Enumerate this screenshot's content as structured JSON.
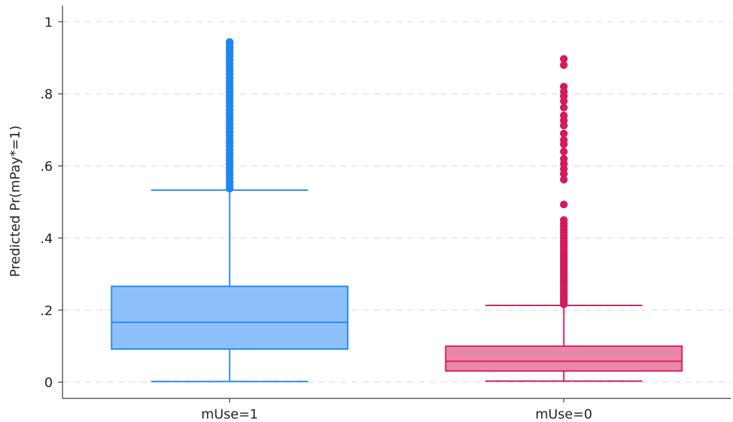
{
  "chart_data": {
    "type": "box",
    "ylabel": "Predicted Pr(mPay*=1)",
    "xlabel": "",
    "ylim": [
      -0.045,
      1.045
    ],
    "grid": true,
    "yticks": [
      {
        "value": 0,
        "label": "0"
      },
      {
        "value": 0.2,
        "label": ".2"
      },
      {
        "value": 0.4,
        "label": ".4"
      },
      {
        "value": 0.6,
        "label": ".6"
      },
      {
        "value": 0.8,
        "label": ".8"
      },
      {
        "value": 1,
        "label": "1"
      }
    ],
    "categories": [
      "mUse=1",
      "mUse=0"
    ],
    "series": [
      {
        "category": "mUse=1",
        "color": "#1f86f4",
        "fill": "#8ec1fb",
        "whisker_low": 0.002,
        "q1": 0.092,
        "median": 0.166,
        "q3": 0.266,
        "whisker_high": 0.533,
        "outliers": [
          0.537,
          0.545,
          0.555,
          0.565,
          0.575,
          0.585,
          0.595,
          0.605,
          0.615,
          0.625,
          0.635,
          0.645,
          0.655,
          0.665,
          0.675,
          0.685,
          0.695,
          0.705,
          0.715,
          0.725,
          0.735,
          0.745,
          0.755,
          0.765,
          0.775,
          0.785,
          0.795,
          0.805,
          0.815,
          0.825,
          0.835,
          0.845,
          0.855,
          0.865,
          0.875,
          0.885,
          0.895,
          0.905,
          0.915,
          0.922,
          0.93,
          0.938,
          0.944
        ]
      },
      {
        "category": "mUse=0",
        "color": "#d6185f",
        "fill": "#ea88a8",
        "whisker_low": 0.003,
        "q1": 0.031,
        "median": 0.058,
        "q3": 0.1,
        "whisker_high": 0.213,
        "outliers": [
          0.216,
          0.222,
          0.228,
          0.234,
          0.24,
          0.247,
          0.254,
          0.261,
          0.268,
          0.275,
          0.282,
          0.289,
          0.296,
          0.303,
          0.31,
          0.317,
          0.324,
          0.331,
          0.338,
          0.345,
          0.352,
          0.36,
          0.368,
          0.376,
          0.384,
          0.392,
          0.4,
          0.408,
          0.416,
          0.424,
          0.432,
          0.44,
          0.45,
          0.493,
          0.562,
          0.578,
          0.592,
          0.606,
          0.62,
          0.64,
          0.66,
          0.672,
          0.69,
          0.712,
          0.726,
          0.74,
          0.762,
          0.78,
          0.794,
          0.806,
          0.82,
          0.88,
          0.897
        ]
      }
    ]
  }
}
